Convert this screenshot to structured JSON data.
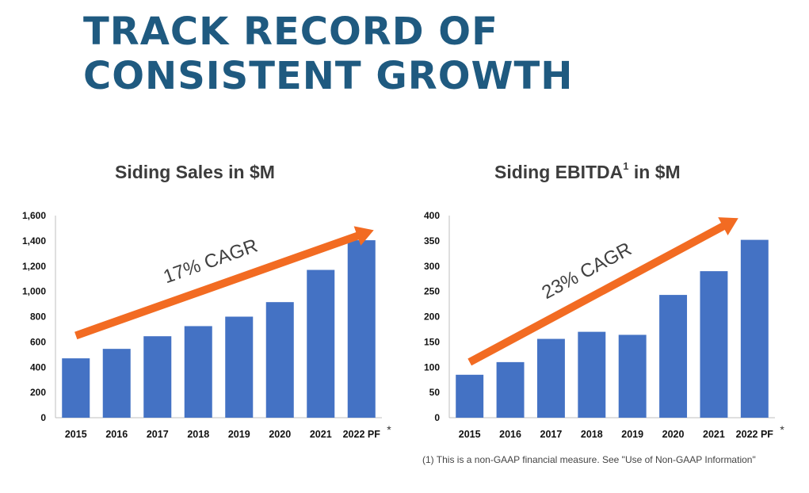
{
  "page": {
    "title_line1": "TRACK RECORD OF",
    "title_line2": "CONSISTENT GROWTH",
    "footnote": "(1) This is a non-GAAP financial measure. See \"Use of Non-GAAP Information\""
  },
  "colors": {
    "bar": "#4472c4",
    "arrow": "#f26b22",
    "title": "#1f5a80"
  },
  "chart_data": [
    {
      "type": "bar",
      "title": "Siding Sales in $M",
      "categories": [
        "2015",
        "2016",
        "2017",
        "2018",
        "2019",
        "2020",
        "2021",
        "2022 PF"
      ],
      "values": [
        470,
        545,
        645,
        725,
        800,
        915,
        1170,
        1405
      ],
      "ylim": [
        0,
        1600
      ],
      "yticks": [
        "0",
        "200",
        "400",
        "600",
        "800",
        "1,000",
        "1,200",
        "1,400",
        "1,600"
      ],
      "xlabel": "",
      "ylabel": "",
      "asterisk": "*",
      "annotation": {
        "text": "17% CAGR",
        "arrow_from": [
          0,
          650
        ],
        "arrow_to": [
          7.3,
          1485
        ]
      }
    },
    {
      "type": "bar",
      "title_main": "Siding EBITDA",
      "title_sup": "1",
      "title_rest": " in $M",
      "categories": [
        "2015",
        "2016",
        "2017",
        "2018",
        "2019",
        "2020",
        "2021",
        "2022 PF"
      ],
      "values": [
        85,
        110,
        156,
        170,
        164,
        243,
        290,
        352
      ],
      "ylim": [
        0,
        400
      ],
      "yticks": [
        "0",
        "50",
        "100",
        "150",
        "200",
        "250",
        "300",
        "350",
        "400"
      ],
      "xlabel": "",
      "ylabel": "",
      "asterisk": "*",
      "annotation": {
        "text": "23% CAGR",
        "arrow_from": [
          0,
          110
        ],
        "arrow_to": [
          6.6,
          395
        ]
      }
    }
  ]
}
